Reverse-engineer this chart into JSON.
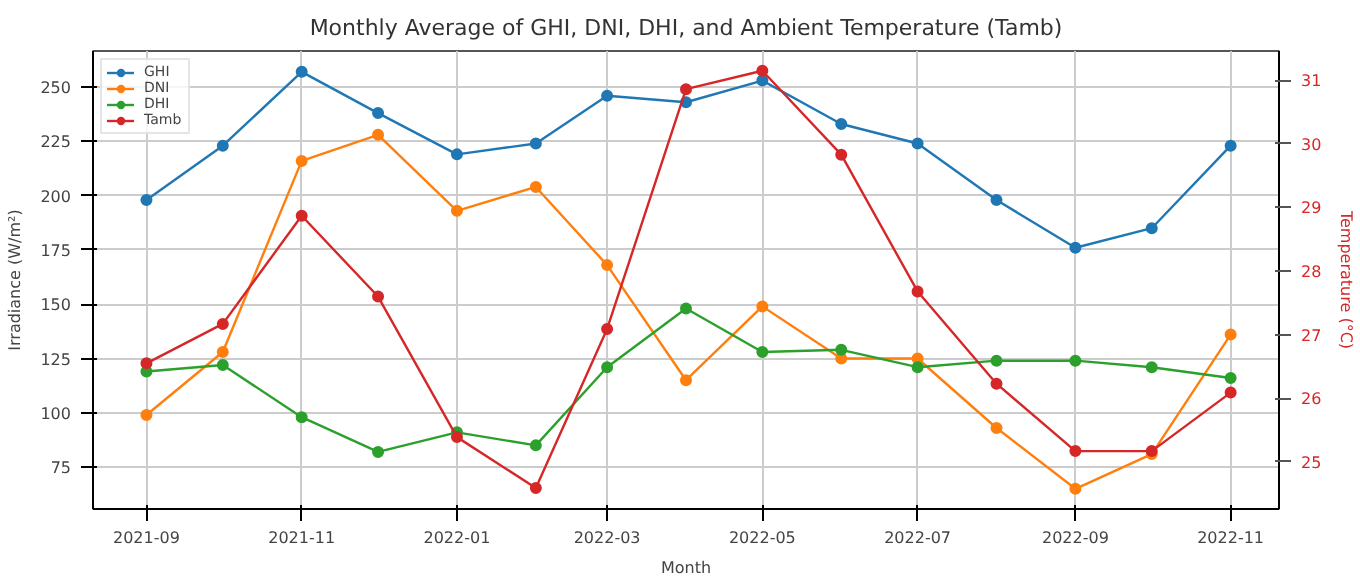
{
  "chart_data": {
    "type": "line",
    "title": "Monthly Average of GHI, DNI, DHI, and Ambient Temperature (Tamb)",
    "xlabel": "Month",
    "ylabel": "Irradiance (W/m²)",
    "y2label": "Temperature (°C)",
    "x": [
      "2021-09-01",
      "2021-10-01",
      "2021-11-01",
      "2021-12-01",
      "2022-01-01",
      "2022-02-01",
      "2022-03-01",
      "2022-04-01",
      "2022-05-01",
      "2022-06-01",
      "2022-07-01",
      "2022-08-01",
      "2022-09-01",
      "2022-10-01",
      "2022-11-01"
    ],
    "series": [
      {
        "name": "GHI",
        "color": "#1f77b4",
        "values": [
          198,
          223,
          257,
          238,
          219,
          224,
          246,
          243,
          253,
          233,
          224,
          198,
          176,
          185,
          223
        ]
      },
      {
        "name": "DNI",
        "color": "#ff7f0e",
        "values": [
          99,
          128,
          216,
          228,
          193,
          204,
          168,
          115,
          149,
          125,
          125,
          93,
          65,
          81,
          136
        ]
      },
      {
        "name": "DHI",
        "color": "#2ca02c",
        "values": [
          119,
          122,
          98,
          82,
          91,
          85,
          121,
          148,
          128,
          129,
          121,
          124,
          124,
          121,
          116
        ]
      },
      {
        "name": "Tamb",
        "color": "#d62728",
        "axis": "y2",
        "values": [
          26.55,
          27.17,
          28.87,
          27.6,
          25.39,
          24.59,
          27.09,
          30.86,
          31.15,
          29.83,
          27.68,
          26.23,
          25.17,
          25.17,
          26.09
        ]
      }
    ],
    "xlim": [
      "2021-08-11",
      "2022-11-20"
    ],
    "xticks": [
      {
        "value": "2021-09-01",
        "label": "2021-09"
      },
      {
        "value": "2021-11-01",
        "label": "2021-11"
      },
      {
        "value": "2022-01-01",
        "label": "2022-01"
      },
      {
        "value": "2022-03-01",
        "label": "2022-03"
      },
      {
        "value": "2022-05-01",
        "label": "2022-05"
      },
      {
        "value": "2022-07-01",
        "label": "2022-07"
      },
      {
        "value": "2022-09-01",
        "label": "2022-09"
      },
      {
        "value": "2022-11-01",
        "label": "2022-11"
      }
    ],
    "ylim": [
      55.7,
      266.6
    ],
    "yticks": [
      75,
      100,
      125,
      150,
      175,
      200,
      225,
      250
    ],
    "y2lim": [
      24.26,
      31.46
    ],
    "y2ticks": [
      25,
      26,
      27,
      28,
      29,
      30,
      31
    ],
    "grid": true,
    "legend": "top left",
    "marker": "circle",
    "line_style": "solid"
  }
}
